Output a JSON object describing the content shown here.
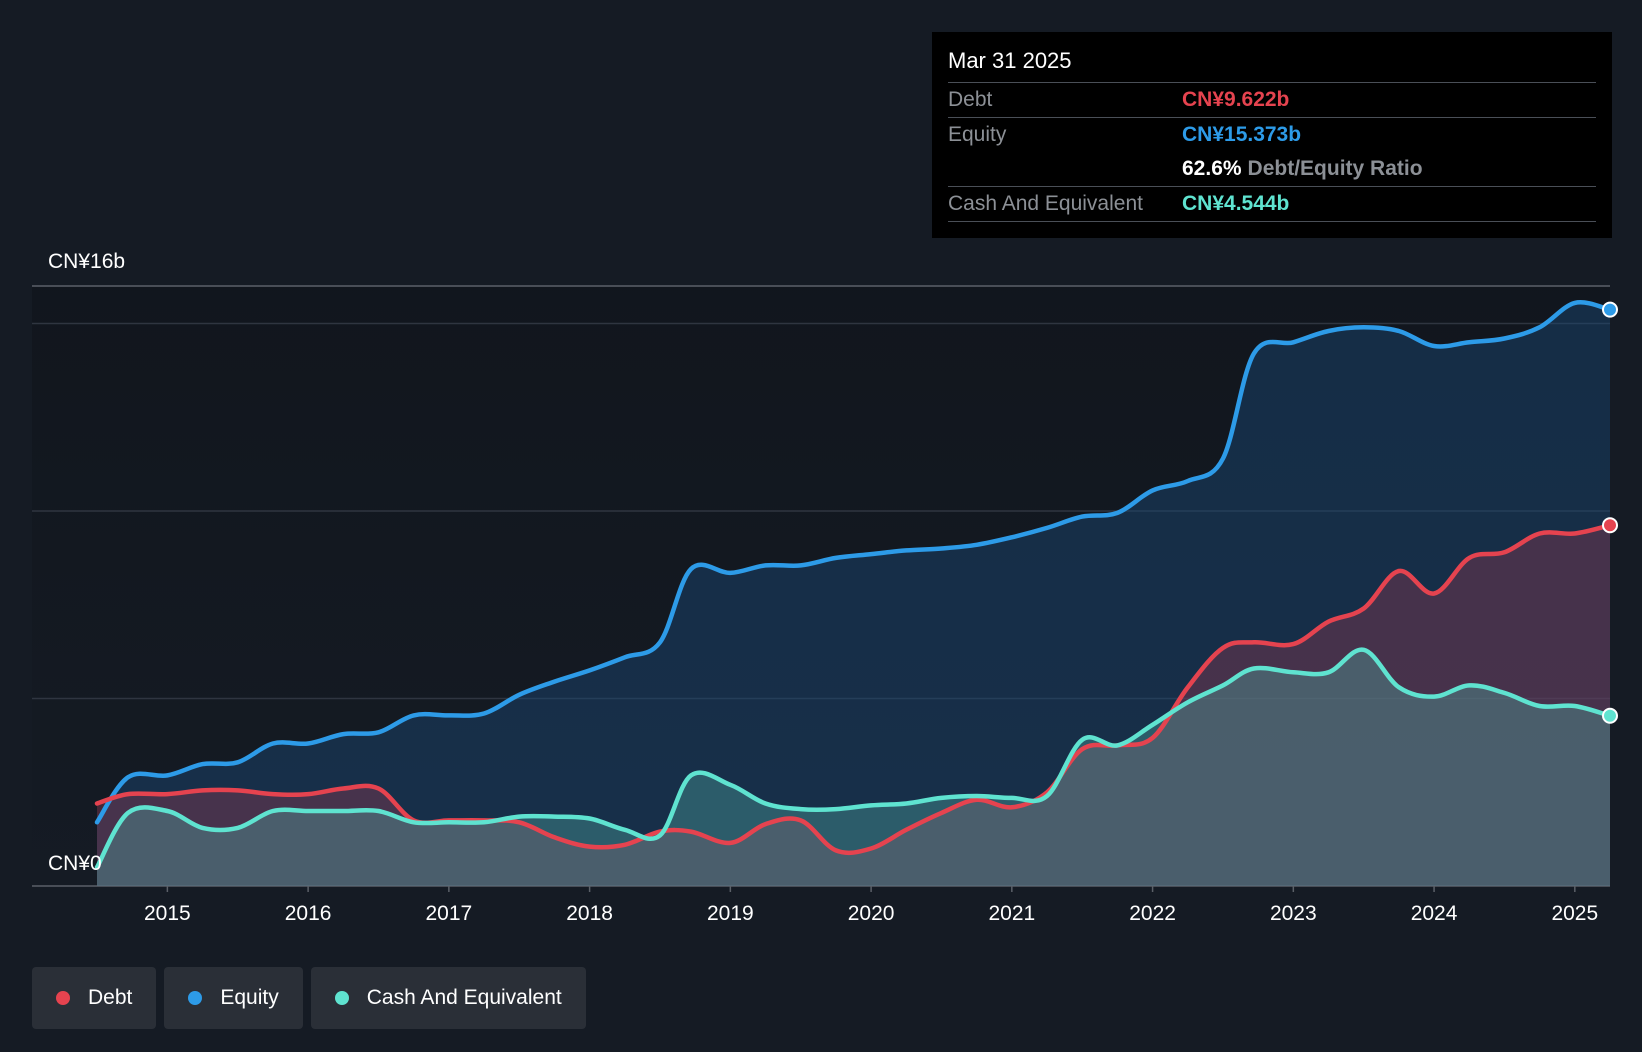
{
  "tooltip": {
    "date": "Mar 31 2025",
    "debt_label": "Debt",
    "debt_value": "CN¥9.622b",
    "equity_label": "Equity",
    "equity_value": "CN¥15.373b",
    "ratio_value": "62.6%",
    "ratio_label": "Debt/Equity Ratio",
    "cash_label": "Cash And Equivalent",
    "cash_value": "CN¥4.544b"
  },
  "y_axis": {
    "top_label": "CN¥16b",
    "bottom_label": "CN¥0"
  },
  "legend": [
    {
      "label": "Debt",
      "color": "#e5434f"
    },
    {
      "label": "Equity",
      "color": "#2d9be8"
    },
    {
      "label": "Cash And Equivalent",
      "color": "#5fe3d0"
    }
  ],
  "colors": {
    "background": "#151b24",
    "debt": "#e5434f",
    "equity": "#2d9be8",
    "cash": "#5fe3d0"
  },
  "chart_data": {
    "type": "area",
    "ylim": [
      0,
      16
    ],
    "yunit": "CN¥b",
    "x_ticks": [
      "2015",
      "2016",
      "2017",
      "2018",
      "2019",
      "2020",
      "2021",
      "2022",
      "2023",
      "2024",
      "2025"
    ],
    "xlim": [
      2014.5,
      2025.25
    ],
    "series": [
      {
        "name": "Equity",
        "points": [
          [
            2014.5,
            1.7
          ],
          [
            2014.72,
            2.9
          ],
          [
            2015.0,
            2.95
          ],
          [
            2015.25,
            3.25
          ],
          [
            2015.5,
            3.3
          ],
          [
            2015.75,
            3.8
          ],
          [
            2016.0,
            3.8
          ],
          [
            2016.25,
            4.05
          ],
          [
            2016.5,
            4.1
          ],
          [
            2016.75,
            4.55
          ],
          [
            2017.0,
            4.55
          ],
          [
            2017.25,
            4.6
          ],
          [
            2017.5,
            5.1
          ],
          [
            2017.75,
            5.45
          ],
          [
            2018.0,
            5.75
          ],
          [
            2018.25,
            6.1
          ],
          [
            2018.5,
            6.5
          ],
          [
            2018.72,
            8.45
          ],
          [
            2019.0,
            8.35
          ],
          [
            2019.25,
            8.55
          ],
          [
            2019.5,
            8.55
          ],
          [
            2019.75,
            8.75
          ],
          [
            2020.0,
            8.85
          ],
          [
            2020.25,
            8.95
          ],
          [
            2020.5,
            9.0
          ],
          [
            2020.75,
            9.1
          ],
          [
            2021.0,
            9.3
          ],
          [
            2021.25,
            9.55
          ],
          [
            2021.5,
            9.85
          ],
          [
            2021.75,
            9.95
          ],
          [
            2022.0,
            10.55
          ],
          [
            2022.25,
            10.8
          ],
          [
            2022.5,
            11.4
          ],
          [
            2022.72,
            14.2
          ],
          [
            2023.0,
            14.5
          ],
          [
            2023.25,
            14.8
          ],
          [
            2023.5,
            14.9
          ],
          [
            2023.75,
            14.8
          ],
          [
            2024.0,
            14.4
          ],
          [
            2024.25,
            14.5
          ],
          [
            2024.5,
            14.6
          ],
          [
            2024.75,
            14.9
          ],
          [
            2025.0,
            15.55
          ],
          [
            2025.25,
            15.37
          ]
        ]
      },
      {
        "name": "Debt",
        "points": [
          [
            2014.5,
            2.2
          ],
          [
            2014.72,
            2.45
          ],
          [
            2015.0,
            2.45
          ],
          [
            2015.25,
            2.55
          ],
          [
            2015.5,
            2.55
          ],
          [
            2015.75,
            2.45
          ],
          [
            2016.0,
            2.45
          ],
          [
            2016.25,
            2.6
          ],
          [
            2016.5,
            2.6
          ],
          [
            2016.75,
            1.75
          ],
          [
            2017.0,
            1.75
          ],
          [
            2017.25,
            1.75
          ],
          [
            2017.5,
            1.7
          ],
          [
            2017.75,
            1.3
          ],
          [
            2018.0,
            1.05
          ],
          [
            2018.25,
            1.1
          ],
          [
            2018.5,
            1.45
          ],
          [
            2018.72,
            1.45
          ],
          [
            2019.0,
            1.15
          ],
          [
            2019.25,
            1.65
          ],
          [
            2019.5,
            1.75
          ],
          [
            2019.75,
            0.95
          ],
          [
            2020.0,
            1.0
          ],
          [
            2020.25,
            1.5
          ],
          [
            2020.5,
            1.95
          ],
          [
            2020.75,
            2.3
          ],
          [
            2021.0,
            2.1
          ],
          [
            2021.25,
            2.5
          ],
          [
            2021.5,
            3.65
          ],
          [
            2021.75,
            3.75
          ],
          [
            2022.0,
            3.95
          ],
          [
            2022.25,
            5.3
          ],
          [
            2022.5,
            6.35
          ],
          [
            2022.72,
            6.5
          ],
          [
            2023.0,
            6.45
          ],
          [
            2023.25,
            7.05
          ],
          [
            2023.5,
            7.4
          ],
          [
            2023.75,
            8.4
          ],
          [
            2024.0,
            7.8
          ],
          [
            2024.25,
            8.75
          ],
          [
            2024.5,
            8.9
          ],
          [
            2024.75,
            9.4
          ],
          [
            2025.0,
            9.4
          ],
          [
            2025.25,
            9.62
          ]
        ]
      },
      {
        "name": "Cash And Equivalent",
        "points": [
          [
            2014.5,
            0.5
          ],
          [
            2014.72,
            1.95
          ],
          [
            2015.0,
            2.0
          ],
          [
            2015.25,
            1.55
          ],
          [
            2015.5,
            1.55
          ],
          [
            2015.75,
            2.0
          ],
          [
            2016.0,
            2.0
          ],
          [
            2016.25,
            2.0
          ],
          [
            2016.5,
            2.0
          ],
          [
            2016.75,
            1.7
          ],
          [
            2017.0,
            1.7
          ],
          [
            2017.25,
            1.7
          ],
          [
            2017.5,
            1.85
          ],
          [
            2017.75,
            1.85
          ],
          [
            2018.0,
            1.8
          ],
          [
            2018.25,
            1.5
          ],
          [
            2018.5,
            1.35
          ],
          [
            2018.72,
            2.95
          ],
          [
            2019.0,
            2.7
          ],
          [
            2019.25,
            2.2
          ],
          [
            2019.5,
            2.05
          ],
          [
            2019.75,
            2.05
          ],
          [
            2020.0,
            2.15
          ],
          [
            2020.25,
            2.2
          ],
          [
            2020.5,
            2.35
          ],
          [
            2020.75,
            2.4
          ],
          [
            2021.0,
            2.35
          ],
          [
            2021.25,
            2.4
          ],
          [
            2021.5,
            3.9
          ],
          [
            2021.75,
            3.75
          ],
          [
            2022.0,
            4.3
          ],
          [
            2022.25,
            4.9
          ],
          [
            2022.5,
            5.35
          ],
          [
            2022.72,
            5.8
          ],
          [
            2023.0,
            5.7
          ],
          [
            2023.25,
            5.7
          ],
          [
            2023.5,
            6.3
          ],
          [
            2023.75,
            5.3
          ],
          [
            2024.0,
            5.05
          ],
          [
            2024.25,
            5.35
          ],
          [
            2024.5,
            5.15
          ],
          [
            2024.75,
            4.8
          ],
          [
            2025.0,
            4.8
          ],
          [
            2025.25,
            4.54
          ]
        ]
      }
    ],
    "highlight_date": "Mar 31 2025",
    "grid": true,
    "legend_position": "bottom-left"
  }
}
